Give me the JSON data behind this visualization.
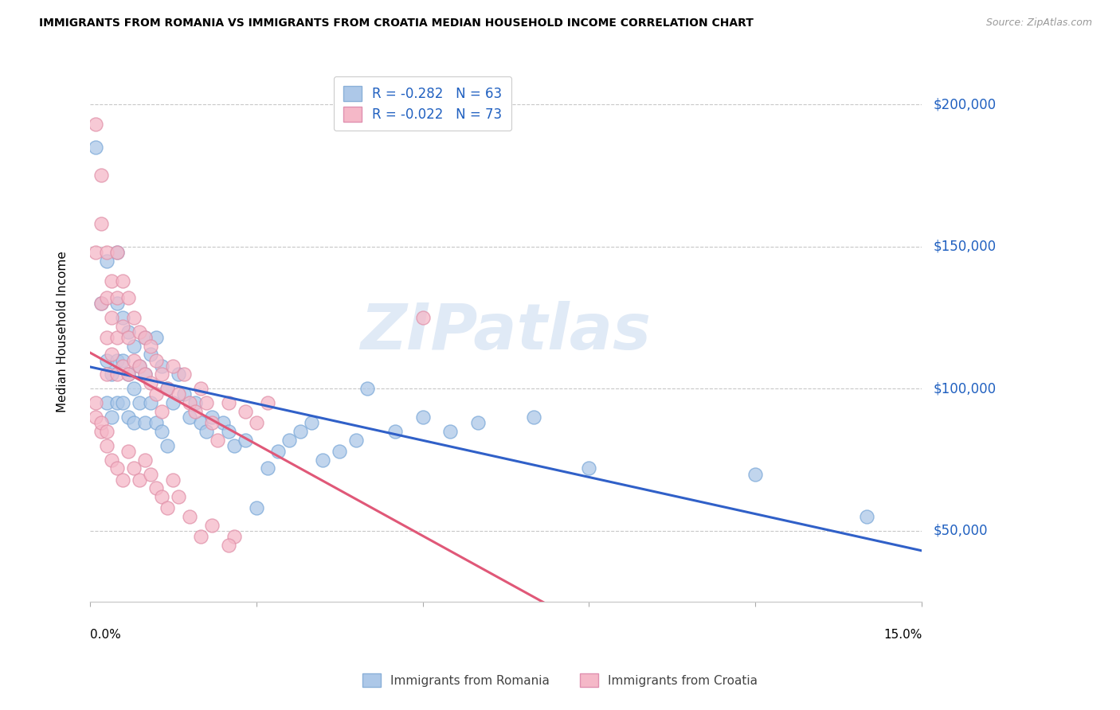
{
  "title": "IMMIGRANTS FROM ROMANIA VS IMMIGRANTS FROM CROATIA MEDIAN HOUSEHOLD INCOME CORRELATION CHART",
  "source": "Source: ZipAtlas.com",
  "ylabel": "Median Household Income",
  "xlim": [
    0.0,
    0.15
  ],
  "ylim": [
    25000,
    215000
  ],
  "watermark": "ZIPatlas",
  "legend_romania": "R = -0.282   N = 63",
  "legend_croatia": "R = -0.022   N = 73",
  "romania_color": "#adc8e8",
  "croatia_color": "#f5b8c8",
  "romania_line_color": "#3060c8",
  "croatia_line_color": "#e05878",
  "ytick_vals": [
    50000,
    100000,
    150000,
    200000
  ],
  "ytick_labels": [
    "$50,000",
    "$100,000",
    "$150,000",
    "$200,000"
  ],
  "xtick_positions": [
    0.0,
    0.03,
    0.06,
    0.09,
    0.12,
    0.15
  ],
  "xtick_labels": [
    "0.0%",
    "",
    "",
    "",
    "",
    "15.0%"
  ],
  "romania_scatter_x": [
    0.001,
    0.002,
    0.003,
    0.003,
    0.003,
    0.004,
    0.004,
    0.005,
    0.005,
    0.005,
    0.005,
    0.006,
    0.006,
    0.006,
    0.007,
    0.007,
    0.007,
    0.008,
    0.008,
    0.008,
    0.009,
    0.009,
    0.01,
    0.01,
    0.01,
    0.011,
    0.011,
    0.012,
    0.012,
    0.013,
    0.013,
    0.014,
    0.014,
    0.015,
    0.016,
    0.017,
    0.018,
    0.019,
    0.02,
    0.021,
    0.022,
    0.024,
    0.025,
    0.026,
    0.028,
    0.03,
    0.032,
    0.034,
    0.036,
    0.038,
    0.04,
    0.042,
    0.045,
    0.048,
    0.05,
    0.055,
    0.06,
    0.065,
    0.07,
    0.08,
    0.09,
    0.12,
    0.14
  ],
  "romania_scatter_y": [
    185000,
    130000,
    145000,
    110000,
    95000,
    105000,
    90000,
    148000,
    130000,
    110000,
    95000,
    125000,
    110000,
    95000,
    120000,
    105000,
    90000,
    115000,
    100000,
    88000,
    108000,
    95000,
    118000,
    105000,
    88000,
    112000,
    95000,
    118000,
    88000,
    108000,
    85000,
    100000,
    80000,
    95000,
    105000,
    98000,
    90000,
    95000,
    88000,
    85000,
    90000,
    88000,
    85000,
    80000,
    82000,
    58000,
    72000,
    78000,
    82000,
    85000,
    88000,
    75000,
    78000,
    82000,
    100000,
    85000,
    90000,
    85000,
    88000,
    90000,
    72000,
    70000,
    55000
  ],
  "croatia_scatter_x": [
    0.001,
    0.001,
    0.002,
    0.002,
    0.002,
    0.003,
    0.003,
    0.003,
    0.003,
    0.004,
    0.004,
    0.004,
    0.005,
    0.005,
    0.005,
    0.005,
    0.006,
    0.006,
    0.006,
    0.007,
    0.007,
    0.007,
    0.008,
    0.008,
    0.009,
    0.009,
    0.01,
    0.01,
    0.011,
    0.011,
    0.012,
    0.012,
    0.013,
    0.013,
    0.014,
    0.015,
    0.016,
    0.017,
    0.018,
    0.019,
    0.02,
    0.021,
    0.022,
    0.023,
    0.025,
    0.026,
    0.028,
    0.03,
    0.032,
    0.06,
    0.001,
    0.002,
    0.003,
    0.004,
    0.005,
    0.006,
    0.007,
    0.008,
    0.009,
    0.01,
    0.011,
    0.012,
    0.013,
    0.014,
    0.015,
    0.016,
    0.018,
    0.02,
    0.022,
    0.025,
    0.001,
    0.002,
    0.003
  ],
  "croatia_scatter_y": [
    193000,
    148000,
    175000,
    158000,
    130000,
    148000,
    132000,
    118000,
    105000,
    138000,
    125000,
    112000,
    148000,
    132000,
    118000,
    105000,
    138000,
    122000,
    108000,
    132000,
    118000,
    105000,
    125000,
    110000,
    120000,
    108000,
    118000,
    105000,
    115000,
    102000,
    110000,
    98000,
    105000,
    92000,
    100000,
    108000,
    98000,
    105000,
    95000,
    92000,
    100000,
    95000,
    88000,
    82000,
    95000,
    48000,
    92000,
    88000,
    95000,
    125000,
    90000,
    85000,
    80000,
    75000,
    72000,
    68000,
    78000,
    72000,
    68000,
    75000,
    70000,
    65000,
    62000,
    58000,
    68000,
    62000,
    55000,
    48000,
    52000,
    45000,
    95000,
    88000,
    85000
  ]
}
